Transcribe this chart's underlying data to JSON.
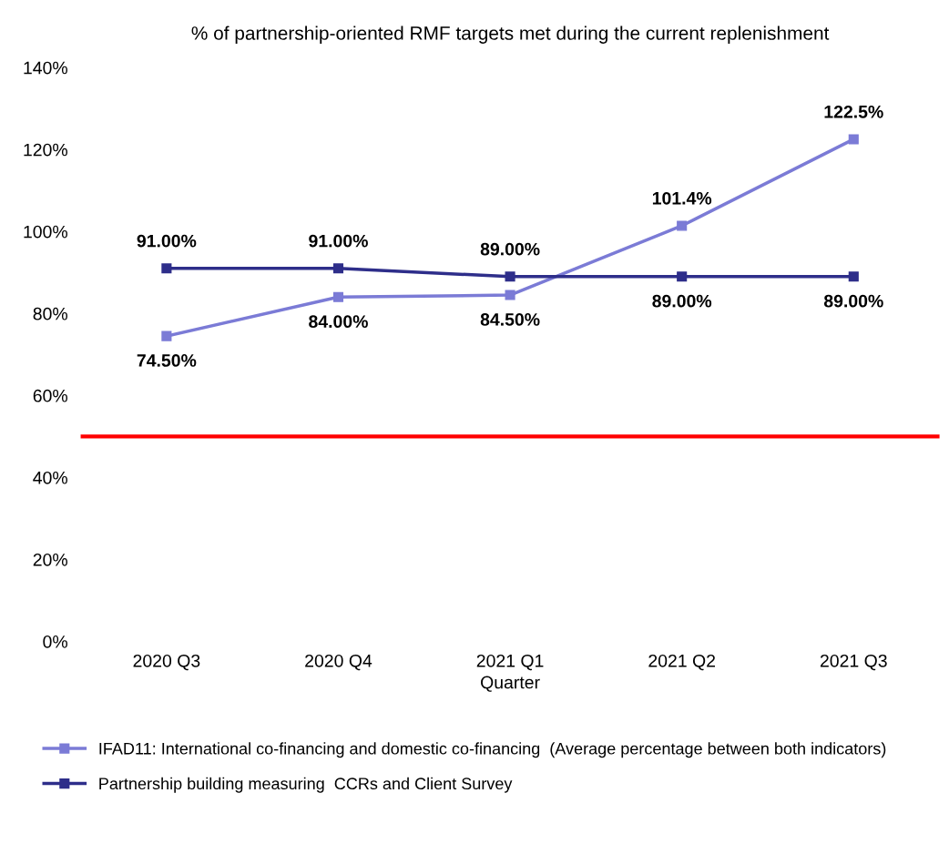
{
  "chart_data": {
    "type": "line",
    "title": "% of partnership-oriented RMF targets met during the current replenishment",
    "xlabel": "Quarter",
    "categories": [
      "2020 Q3",
      "2020 Q4",
      "2021 Q1",
      "2021 Q2",
      "2021 Q3"
    ],
    "series": [
      {
        "name": "IFAD11: International co-financing and domestic co-financing  (Average percentage between both indicators)",
        "color": "#7b7bd6",
        "values": [
          74.5,
          84.0,
          84.5,
          101.4,
          122.5
        ],
        "value_labels": [
          "74.50%",
          "84.00%",
          "84.50%",
          "101.4%",
          "122.5%"
        ]
      },
      {
        "name": "Partnership building measuring  CCRs and Client Survey",
        "color": "#2e2e8a",
        "values": [
          91.0,
          91.0,
          89.0,
          89.0,
          89.0
        ],
        "value_labels": [
          "91.00%",
          "91.00%",
          "89.00%",
          "89.00%",
          "89.00%"
        ]
      }
    ],
    "ylim": [
      0,
      140
    ],
    "yticks": [
      {
        "value": 0,
        "label": "0%"
      },
      {
        "value": 20,
        "label": "20%"
      },
      {
        "value": 40,
        "label": "40%"
      },
      {
        "value": 60,
        "label": "60%"
      },
      {
        "value": 80,
        "label": "80%"
      },
      {
        "value": 100,
        "label": "100%"
      },
      {
        "value": 120,
        "label": "120%"
      },
      {
        "value": 140,
        "label": "140%"
      }
    ],
    "ref_lines": [
      {
        "axis": "y",
        "value": 50,
        "color": "#ff0000"
      }
    ],
    "marker": "square",
    "line_style": "solid",
    "grid": false,
    "legend": "bottom"
  }
}
